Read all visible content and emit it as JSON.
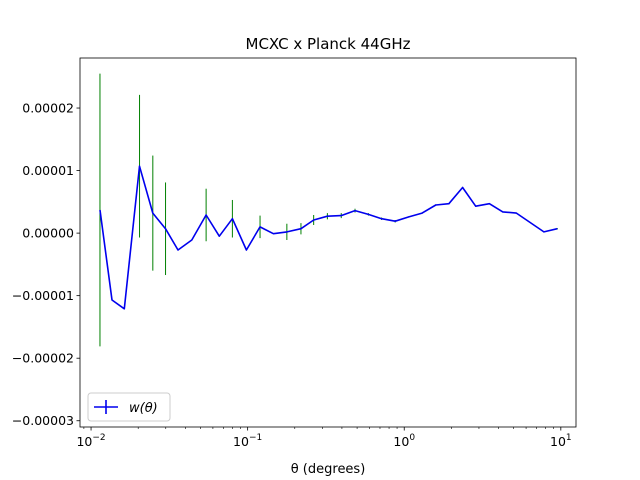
{
  "chart_data": {
    "type": "line",
    "title": "MCXC x Planck 44GHz",
    "xlabel": "θ (degrees)",
    "ylabel": "",
    "xscale": "log",
    "xlim": [
      0.0085,
      12.5
    ],
    "ylim": [
      -3.1e-05,
      2.8e-05
    ],
    "x_ticks": [
      {
        "value": 0.01,
        "base": "10",
        "exp": "−2"
      },
      {
        "value": 0.1,
        "base": "10",
        "exp": "−1"
      },
      {
        "value": 1,
        "base": "10",
        "exp": "0"
      },
      {
        "value": 10,
        "base": "10",
        "exp": "1"
      }
    ],
    "y_ticks": [
      {
        "value": 2e-05,
        "label": "0.00002"
      },
      {
        "value": 1e-05,
        "label": "0.00001"
      },
      {
        "value": 0.0,
        "label": "0.00000"
      },
      {
        "value": -1e-05,
        "label": "−0.00001"
      },
      {
        "value": -2e-05,
        "label": "−0.00002"
      },
      {
        "value": -3e-05,
        "label": "−0.00003"
      }
    ],
    "legend": {
      "label": "w(θ)",
      "position": "lower-left"
    },
    "colors": {
      "line": "#0000ee",
      "errorbar": "#008000"
    },
    "series": [
      {
        "name": "w(θ)",
        "x": [
          0.0114,
          0.0136,
          0.0163,
          0.0204,
          0.0248,
          0.0299,
          0.0359,
          0.044,
          0.0543,
          0.0659,
          0.0799,
          0.0982,
          0.12,
          0.146,
          0.178,
          0.219,
          0.264,
          0.323,
          0.396,
          0.485,
          0.59,
          0.717,
          0.875,
          1.07,
          1.3,
          1.59,
          1.93,
          2.36,
          2.86,
          3.5,
          4.26,
          5.2,
          7.8,
          9.5
        ],
        "y": [
          3.7e-06,
          -1.07e-05,
          -1.21e-05,
          1.07e-05,
          3.2e-06,
          7e-07,
          -2.7e-06,
          -1.1e-06,
          2.9e-06,
          -5e-07,
          2.3e-06,
          -2.7e-06,
          1e-06,
          -1e-07,
          2e-07,
          7e-07,
          2.1e-06,
          2.7e-06,
          2.8e-06,
          3.6e-06,
          3e-06,
          2.3e-06,
          1.9e-06,
          2.6e-06,
          3.2e-06,
          4.5e-06,
          4.7e-06,
          7.3e-06,
          4.3e-06,
          4.7e-06,
          3.4e-06,
          3.2e-06,
          2e-07,
          7e-07
        ],
        "yerr": [
          2.18e-05,
          0.0,
          0.0,
          1.14e-05,
          9.2e-06,
          7.4e-06,
          0.0,
          0.0,
          4.2e-06,
          0.0,
          3e-06,
          0.0,
          1.8e-06,
          0.0,
          1.3e-06,
          9e-07,
          8e-07,
          5e-07,
          4e-07,
          3e-07,
          2e-07,
          2e-07,
          2e-07,
          1e-07,
          1e-07,
          1e-07,
          1e-07,
          1e-07,
          1e-07,
          1e-07,
          1e-07,
          1e-07,
          1e-07,
          1e-07
        ]
      }
    ]
  }
}
